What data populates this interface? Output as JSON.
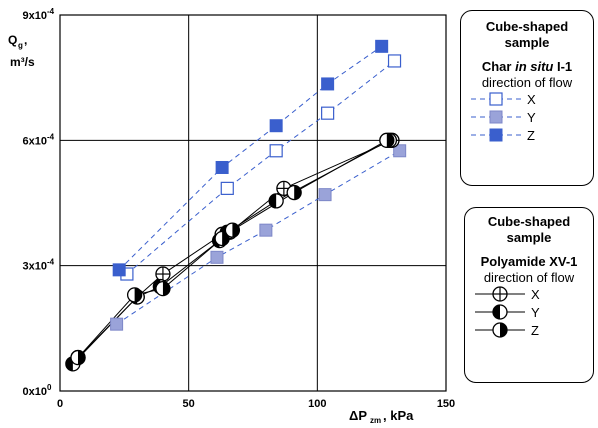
{
  "chart_data": {
    "type": "scatter",
    "ylabel_main": "Q",
    "ylabel_sub": "g",
    "ylabel_sep": ",",
    "ylabel_unit": "m³/s",
    "xlabel_main": "ΔP",
    "xlabel_sub": "zm",
    "xlabel_unit": ", kPa",
    "xlim": [
      0,
      150
    ],
    "ylim": [
      0,
      0.0009
    ],
    "x_ticks": [
      "0",
      "50",
      "100",
      "150"
    ],
    "y_ticks": [
      "0x10",
      "3x10",
      "6x10",
      "9x10"
    ],
    "y_tick_exps": [
      "0",
      "-4",
      "-4",
      "-4"
    ],
    "grid": true,
    "groups": [
      {
        "material_a": "Char",
        "material_b": "in situ",
        "material_c": " I-1",
        "heading_1": "Cube-shaped",
        "heading_2": "sample",
        "subheading": "direction of flow",
        "line_style": "dashed",
        "color": "#3a5fcd",
        "series": [
          {
            "name": "X",
            "marker": "open-square",
            "x": [
              26,
              65,
              84,
              104,
              130
            ],
            "y": [
              0.00028,
              0.000485,
              0.000575,
              0.000665,
              0.00079
            ]
          },
          {
            "name": "Y",
            "marker": "light-filled-square",
            "x": [
              22,
              61,
              80,
              103,
              132
            ],
            "y": [
              0.00016,
              0.00032,
              0.000385,
              0.00047,
              0.000575
            ]
          },
          {
            "name": "Z",
            "marker": "dark-filled-square",
            "x": [
              23,
              63,
              84,
              104,
              125
            ],
            "y": [
              0.00029,
              0.000535,
              0.000635,
              0.000735,
              0.000825
            ]
          }
        ]
      },
      {
        "material_a": "Polyamide XV-1",
        "heading_1": "Cube-shaped",
        "heading_2": "sample",
        "subheading": "direction of flow",
        "line_style": "solid",
        "color": "#000000",
        "series": [
          {
            "name": "X",
            "marker": "crossed-circle",
            "x": [
              7,
              30,
              40,
              63,
              66,
              87,
              129
            ],
            "y": [
              8e-05,
              0.000225,
              0.00028,
              0.000375,
              0.00038,
              0.000485,
              0.0006
            ]
          },
          {
            "name": "Y",
            "marker": "left-half-filled-circle",
            "x": [
              5,
              30,
              39,
              62,
              65,
              84,
              128
            ],
            "y": [
              6.5e-05,
              0.000225,
              0.00025,
              0.00036,
              0.00038,
              0.000455,
              0.0006
            ]
          },
          {
            "name": "Z",
            "marker": "right-half-filled-circle",
            "x": [
              7,
              29,
              40,
              63,
              67,
              91,
              127
            ],
            "y": [
              8e-05,
              0.00023,
              0.000245,
              0.000365,
              0.000385,
              0.000475,
              0.0006
            ]
          }
        ]
      }
    ]
  }
}
